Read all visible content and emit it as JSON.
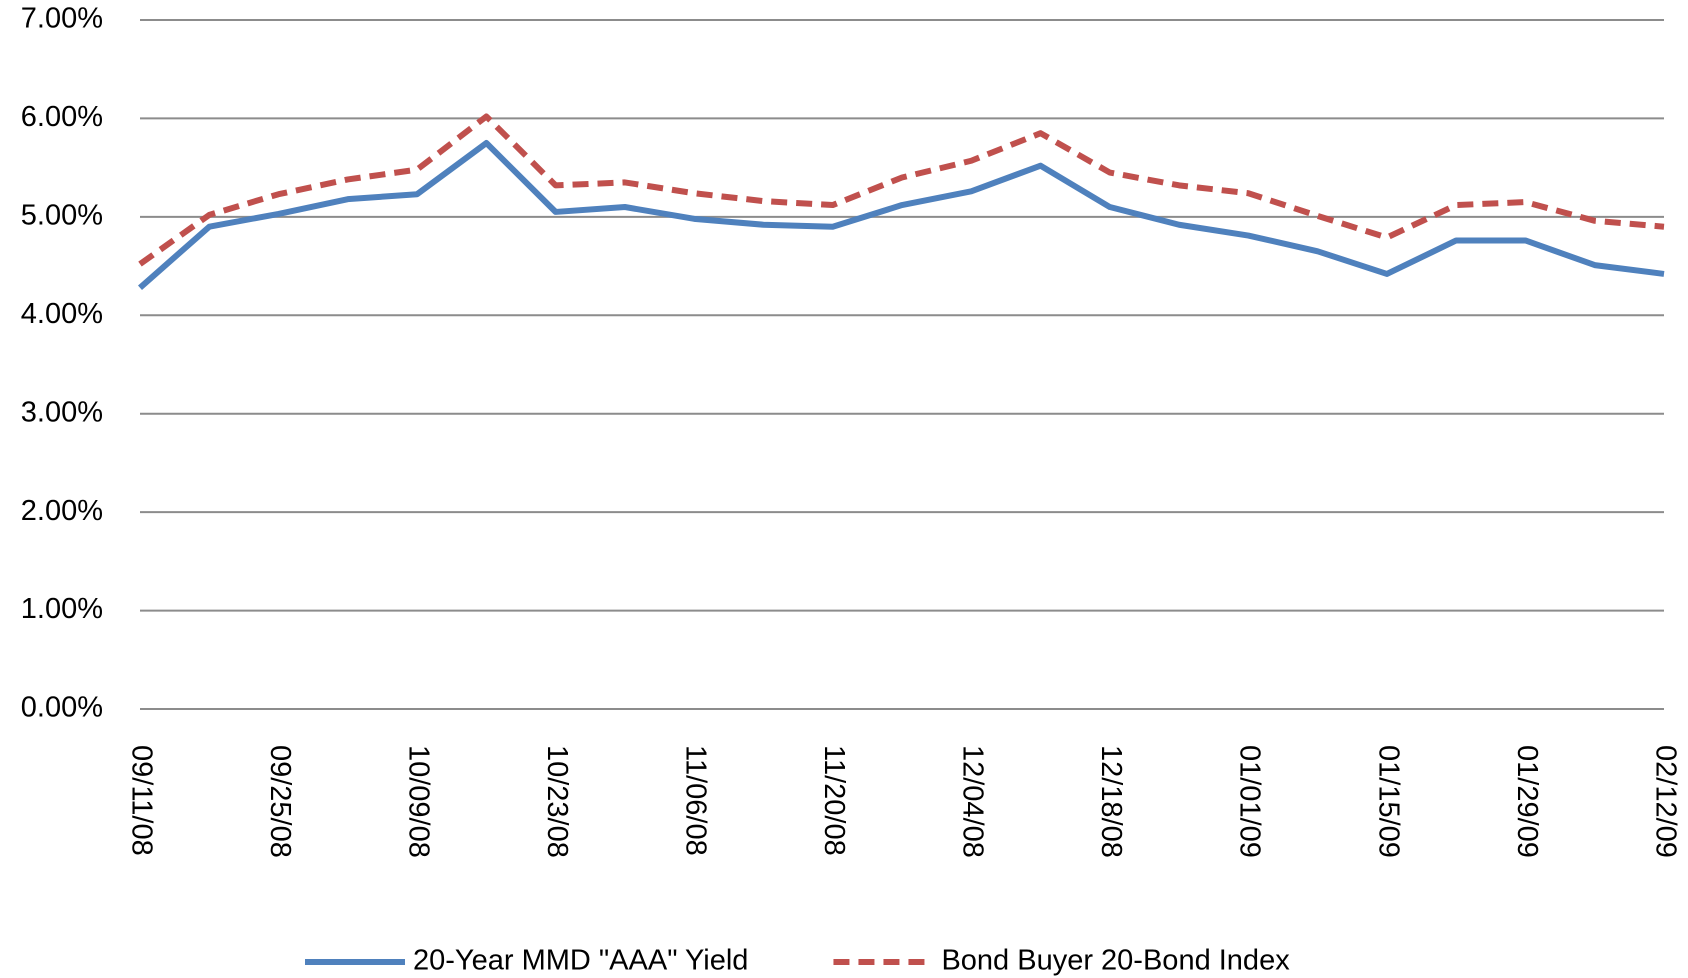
{
  "chart_data": {
    "type": "line",
    "categories": [
      "09/11/08",
      null,
      "09/25/08",
      null,
      "10/09/08",
      null,
      "10/23/08",
      null,
      "11/06/08",
      null,
      "11/20/08",
      null,
      "12/04/08",
      null,
      "12/18/08",
      null,
      "01/01/09",
      null,
      "01/15/09",
      null,
      "01/29/09",
      null,
      "02/12/09"
    ],
    "series": [
      {
        "name": "20-Year MMD \"AAA\" Yield",
        "color": "#4f81bd",
        "dashed": false,
        "values": [
          4.28,
          4.9,
          5.03,
          5.18,
          5.23,
          5.75,
          5.05,
          5.1,
          4.98,
          4.92,
          4.9,
          5.12,
          5.26,
          5.52,
          5.1,
          4.92,
          4.81,
          4.65,
          4.42,
          4.76,
          4.76,
          4.51,
          4.42
        ]
      },
      {
        "name": "Bond Buyer 20-Bond Index",
        "color": "#c0504d",
        "dashed": true,
        "values": [
          4.52,
          5.02,
          5.23,
          5.38,
          5.48,
          6.02,
          5.32,
          5.35,
          5.24,
          5.16,
          5.12,
          5.4,
          5.57,
          5.85,
          5.45,
          5.32,
          5.24,
          5.01,
          4.79,
          5.12,
          5.15,
          4.96,
          4.9
        ]
      }
    ],
    "ylim": [
      0,
      7
    ],
    "yticks": [
      {
        "value": 0,
        "label": "0.00%"
      },
      {
        "value": 1,
        "label": "1.00%"
      },
      {
        "value": 2,
        "label": "2.00%"
      },
      {
        "value": 3,
        "label": "3.00%"
      },
      {
        "value": 4,
        "label": "4.00%"
      },
      {
        "value": 5,
        "label": "5.00%"
      },
      {
        "value": 6,
        "label": "6.00%"
      },
      {
        "value": 7,
        "label": "7.00%"
      }
    ],
    "grid": true,
    "legend": "bottom"
  }
}
